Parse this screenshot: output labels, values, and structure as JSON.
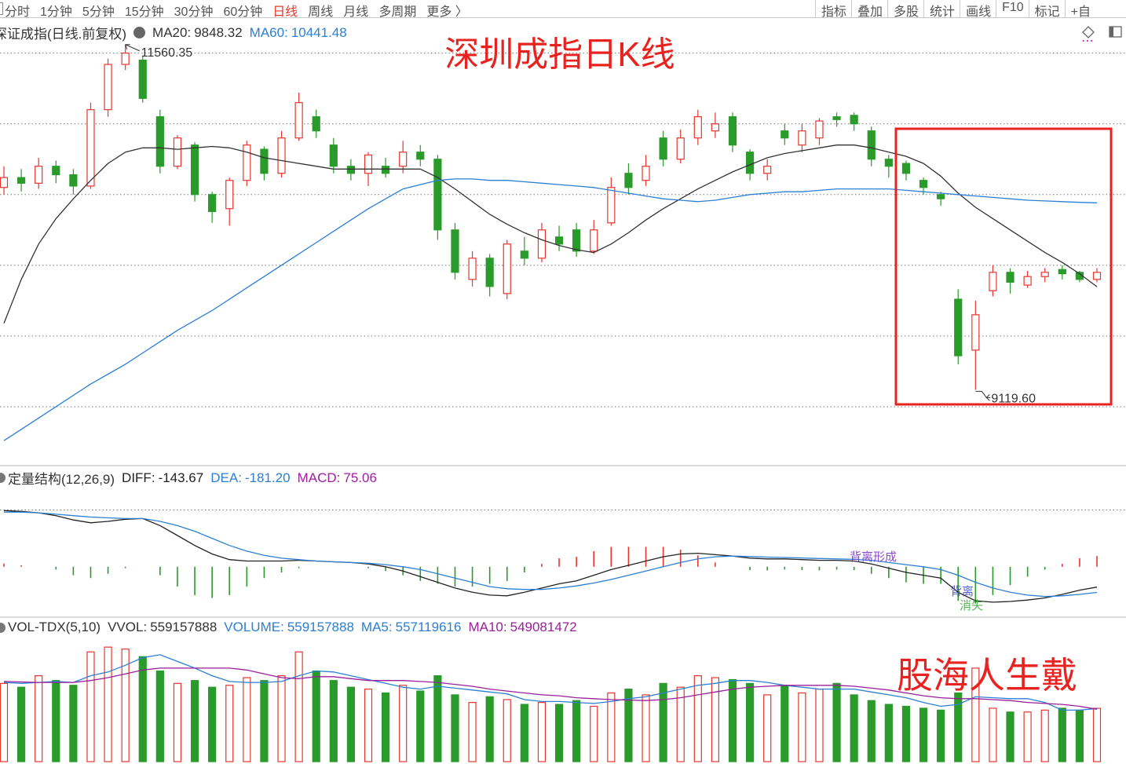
{
  "toolbar": {
    "left": [
      "分时",
      "1分钟",
      "5分钟",
      "15分钟",
      "30分钟",
      "60分钟",
      "日线",
      "周线",
      "月线",
      "多周期",
      "更多 〉"
    ],
    "active": "日线",
    "right": [
      "指标",
      "叠加",
      "多股",
      "统计",
      "画线",
      "F10",
      "标记",
      "+自"
    ]
  },
  "watermark": "股海人生戴",
  "label_separator": ":",
  "chart_data": [
    {
      "type": "candlestick",
      "title": "深证成指(日线.前复权)",
      "overlay_title": "深圳成指日K线",
      "up_color": "#e8352e",
      "down_color": "#2a9a2a",
      "open": [
        10550,
        10620,
        10580,
        10700,
        10640,
        10560,
        11100,
        11420,
        11450,
        11050,
        10700,
        10850,
        10500,
        10400,
        10600,
        10820,
        10650,
        10900,
        11050,
        10850,
        10700,
        10650,
        10700,
        10700,
        10800,
        10750,
        10250,
        9900,
        10050,
        9800,
        10100,
        10050,
        10200,
        10250,
        10100,
        10300,
        10650,
        10600,
        10900,
        10750,
        10900,
        10950,
        11050,
        10800,
        10650,
        10950,
        10850,
        10900,
        11050,
        11060,
        10950,
        10750,
        10720,
        10600,
        10500,
        9760,
        9400,
        9820,
        9950,
        9860,
        9920,
        9970,
        9950,
        9900
      ],
      "high": [
        10700,
        10680,
        10760,
        10740,
        10680,
        11150,
        11460,
        11560.35,
        11480,
        11100,
        10920,
        10870,
        10520,
        10620,
        10880,
        10840,
        10950,
        11220,
        11100,
        10900,
        10750,
        10800,
        10760,
        10880,
        10850,
        10780,
        10300,
        10100,
        10080,
        10180,
        10200,
        10300,
        10280,
        10300,
        10320,
        10620,
        10720,
        10780,
        10950,
        10960,
        11100,
        11080,
        11080,
        10820,
        10750,
        11000,
        11000,
        11040,
        11080,
        11080,
        10980,
        10780,
        10740,
        10620,
        10520,
        9830,
        9750,
        10000,
        9980,
        9960,
        9980,
        10000,
        9960,
        9980
      ],
      "low": [
        10500,
        10520,
        10540,
        10580,
        10500,
        10540,
        11050,
        11380,
        11150,
        10650,
        10680,
        10450,
        10300,
        10280,
        10560,
        10600,
        10620,
        10880,
        10900,
        10650,
        10600,
        10560,
        10620,
        10650,
        10700,
        10180,
        9900,
        9850,
        9780,
        9760,
        10000,
        10020,
        10100,
        10060,
        10080,
        10280,
        10500,
        10560,
        10700,
        10720,
        10850,
        10900,
        10800,
        10600,
        10600,
        10850,
        10800,
        10850,
        10980,
        10950,
        10700,
        10620,
        10600,
        10500,
        10420,
        9300,
        9119.6,
        9780,
        9800,
        9840,
        9880,
        9900,
        9880,
        9880
      ],
      "close": [
        10620,
        10580,
        10700,
        10640,
        10560,
        11100,
        11420,
        11500,
        11180,
        10700,
        10900,
        10500,
        10380,
        10600,
        10850,
        10650,
        10900,
        11150,
        10950,
        10700,
        10650,
        10780,
        10650,
        10800,
        10750,
        10250,
        9950,
        10050,
        9850,
        10150,
        10050,
        10250,
        10150,
        10100,
        10250,
        10550,
        10550,
        10700,
        10750,
        10900,
        11050,
        11000,
        10850,
        10650,
        10700,
        10900,
        10950,
        11020,
        11030,
        11000,
        10750,
        10700,
        10650,
        10550,
        10470,
        9360,
        9650,
        9950,
        9880,
        9920,
        9950,
        9940,
        9900,
        9950
      ],
      "extreme_labels": {
        "high": "11560.35",
        "low": "9119.60"
      },
      "series": [
        {
          "name": "MA20",
          "color": "#333333",
          "last_label": "9848.32",
          "values": [
            9590,
            9900,
            10150,
            10330,
            10470,
            10600,
            10720,
            10800,
            10830,
            10830,
            10820,
            10830,
            10840,
            10830,
            10800,
            10760,
            10740,
            10720,
            10700,
            10680,
            10680,
            10680,
            10680,
            10680,
            10680,
            10620,
            10540,
            10450,
            10360,
            10290,
            10230,
            10180,
            10140,
            10110,
            10090,
            10150,
            10230,
            10320,
            10400,
            10470,
            10540,
            10600,
            10660,
            10710,
            10760,
            10790,
            10810,
            10830,
            10850,
            10850,
            10830,
            10800,
            10770,
            10720,
            10630,
            10510,
            10410,
            10330,
            10250,
            10170,
            10090,
            10020,
            9940,
            9848.32
          ]
        },
        {
          "name": "MA60",
          "color": "#2b7fd4",
          "last_label": "10441.48",
          "values": [
            8760,
            8840,
            8920,
            9000,
            9080,
            9160,
            9230,
            9300,
            9380,
            9460,
            9540,
            9610,
            9680,
            9760,
            9840,
            9920,
            10000,
            10080,
            10160,
            10240,
            10320,
            10400,
            10470,
            10540,
            10570,
            10600,
            10610,
            10610,
            10600,
            10600,
            10590,
            10580,
            10570,
            10560,
            10550,
            10530,
            10510,
            10490,
            10470,
            10460,
            10450,
            10460,
            10480,
            10500,
            10510,
            10520,
            10520,
            10530,
            10540,
            10540,
            10540,
            10540,
            10530,
            10520,
            10510,
            10500,
            10490,
            10480,
            10470,
            10460,
            10455,
            10450,
            10445,
            10441.48
          ]
        }
      ],
      "ylim": [
        8600,
        11720
      ],
      "yticks": [
        9000,
        9500,
        10000,
        10500,
        11000,
        11500
      ],
      "grid": true
    },
    {
      "type": "macd",
      "title": "定量结构(12,26,9)",
      "annotations": [
        "背离形成",
        "背离",
        "消失"
      ],
      "up_color": "#e8352e",
      "down_color": "#2a9a2a",
      "series": [
        {
          "name": "DIFF",
          "color": "#222222",
          "last_label": "-143.67",
          "values": [
            396,
            390,
            380,
            360,
            330,
            310,
            320,
            335,
            340,
            290,
            220,
            150,
            90,
            50,
            40,
            40,
            40,
            45,
            40,
            35,
            30,
            20,
            0,
            -30,
            -70,
            -110,
            -150,
            -180,
            -200,
            -205,
            -180,
            -150,
            -120,
            -100,
            -60,
            -20,
            10,
            40,
            70,
            90,
            95,
            85,
            75,
            60,
            55,
            55,
            50,
            45,
            45,
            40,
            20,
            -10,
            -40,
            -60,
            -80,
            -180,
            -240,
            -250,
            -245,
            -235,
            -220,
            -195,
            -165,
            -143.67
          ]
        },
        {
          "name": "DEA",
          "color": "#2b7fd4",
          "last_label": "-181.20",
          "values": [
            385,
            385,
            380,
            370,
            360,
            350,
            345,
            340,
            340,
            320,
            290,
            250,
            200,
            150,
            110,
            80,
            60,
            50,
            40,
            35,
            30,
            25,
            15,
            0,
            -20,
            -50,
            -80,
            -110,
            -140,
            -155,
            -160,
            -160,
            -150,
            -135,
            -115,
            -90,
            -60,
            -30,
            0,
            30,
            55,
            70,
            75,
            72,
            68,
            65,
            62,
            58,
            55,
            52,
            45,
            30,
            15,
            0,
            -20,
            -60,
            -110,
            -150,
            -180,
            -200,
            -210,
            -205,
            -195,
            -181.2
          ]
        },
        {
          "name": "MACD",
          "color": "#a020a0",
          "style": "histogram",
          "last_label": "75.06",
          "values": [
            22,
            10,
            0,
            -20,
            -60,
            -80,
            -50,
            -10,
            0,
            -60,
            -140,
            -200,
            -220,
            -200,
            -140,
            -80,
            -40,
            -10,
            0,
            0,
            0,
            -10,
            -30,
            -60,
            -100,
            -120,
            -140,
            -140,
            -120,
            -100,
            -40,
            20,
            60,
            70,
            110,
            140,
            140,
            140,
            140,
            120,
            80,
            30,
            0,
            -24,
            -26,
            -20,
            -24,
            -26,
            -20,
            -24,
            -50,
            -80,
            -110,
            -120,
            -120,
            -240,
            -260,
            -200,
            -130,
            -70,
            -20,
            20,
            60,
            75.06
          ]
        }
      ],
      "ylim": [
        -350,
        580
      ],
      "yticks": [
        400
      ],
      "grid": true
    },
    {
      "type": "volume",
      "title": "VOL-TDX(5,10)",
      "vvol": {
        "name": "VVOL",
        "label": "559157888"
      },
      "up_color": "#e8352e",
      "down_color": "#2a9a2a",
      "series": [
        {
          "name": "VOLUME",
          "color": "#2b7fd4",
          "style": "bars",
          "last_label": "559157888",
          "values": [
            820000000,
            780000000,
            900000000,
            850000000,
            800000000,
            1150000000,
            1200000000,
            1180000000,
            1100000000,
            950000000,
            820000000,
            850000000,
            780000000,
            800000000,
            880000000,
            850000000,
            900000000,
            1150000000,
            950000000,
            850000000,
            780000000,
            760000000,
            720000000,
            800000000,
            740000000,
            900000000,
            700000000,
            620000000,
            680000000,
            650000000,
            600000000,
            620000000,
            600000000,
            640000000,
            580000000,
            720000000,
            760000000,
            700000000,
            820000000,
            780000000,
            900000000,
            880000000,
            860000000,
            820000000,
            700000000,
            800000000,
            720000000,
            760000000,
            820000000,
            700000000,
            640000000,
            600000000,
            580000000,
            560000000,
            540000000,
            720000000,
            980000000,
            560000000,
            520000000,
            520000000,
            540000000,
            560000000,
            540000000,
            559157888
          ]
        },
        {
          "name": "MA5",
          "color": "#2b7fd4",
          "last_label": "557119616",
          "values": [
            830000000,
            820000000,
            830000000,
            840000000,
            830000000,
            900000000,
            940000000,
            1010000000,
            1090000000,
            1120000000,
            1050000000,
            980000000,
            900000000,
            840000000,
            830000000,
            830000000,
            840000000,
            900000000,
            950000000,
            940000000,
            900000000,
            860000000,
            820000000,
            780000000,
            760000000,
            790000000,
            770000000,
            750000000,
            730000000,
            710000000,
            650000000,
            630000000,
            630000000,
            620000000,
            610000000,
            630000000,
            660000000,
            680000000,
            720000000,
            760000000,
            800000000,
            820000000,
            850000000,
            850000000,
            830000000,
            800000000,
            780000000,
            760000000,
            760000000,
            760000000,
            730000000,
            700000000,
            670000000,
            620000000,
            580000000,
            600000000,
            680000000,
            670000000,
            660000000,
            660000000,
            620000000,
            540000000,
            540000000,
            557119616
          ]
        },
        {
          "name": "MA10",
          "color": "#9a1f9a",
          "last_label": "549081472",
          "values": [
            840000000,
            835000000,
            830000000,
            830000000,
            830000000,
            850000000,
            880000000,
            920000000,
            960000000,
            980000000,
            980000000,
            980000000,
            980000000,
            980000000,
            960000000,
            920000000,
            880000000,
            870000000,
            890000000,
            890000000,
            870000000,
            850000000,
            850000000,
            850000000,
            840000000,
            830000000,
            810000000,
            790000000,
            760000000,
            740000000,
            720000000,
            700000000,
            690000000,
            670000000,
            660000000,
            650000000,
            645000000,
            640000000,
            650000000,
            670000000,
            700000000,
            730000000,
            760000000,
            780000000,
            790000000,
            800000000,
            800000000,
            800000000,
            800000000,
            790000000,
            770000000,
            750000000,
            720000000,
            690000000,
            670000000,
            660000000,
            660000000,
            650000000,
            640000000,
            620000000,
            610000000,
            600000000,
            580000000,
            549081472
          ]
        }
      ],
      "ylim": [
        0,
        1300000000
      ]
    }
  ]
}
